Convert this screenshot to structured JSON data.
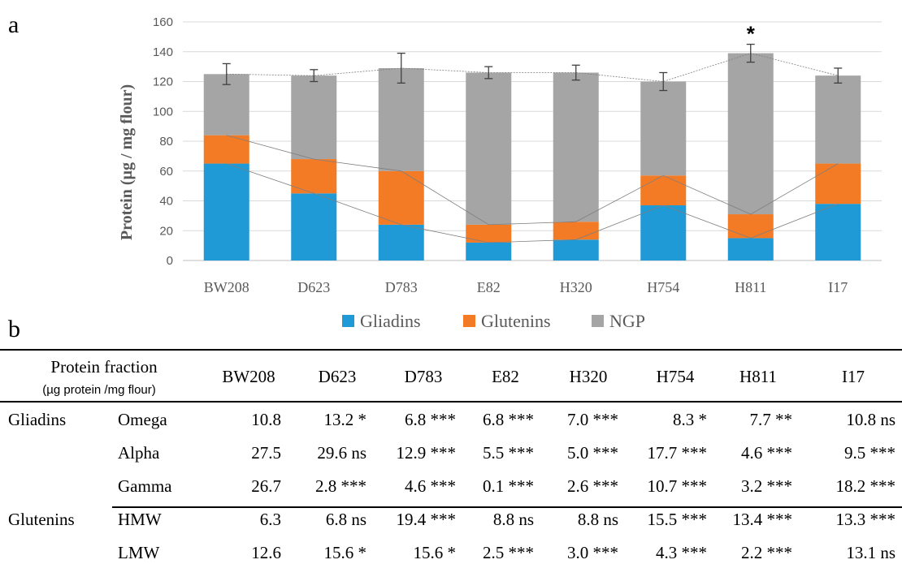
{
  "panel_a_label": "a",
  "panel_b_label": "b",
  "chart_data": {
    "type": "bar",
    "stacked": true,
    "categories": [
      "BW208",
      "D623",
      "D783",
      "E82",
      "H320",
      "H754",
      "H811",
      "I17"
    ],
    "series": [
      {
        "name": "Gliadins",
        "color": "#1f9ad6",
        "values": [
          65,
          45,
          24,
          12,
          14,
          37,
          15,
          38
        ]
      },
      {
        "name": "Glutenins",
        "color": "#f47b25",
        "values": [
          19,
          23,
          36,
          12,
          12,
          20,
          16,
          27
        ]
      },
      {
        "name": "NGP",
        "color": "#a5a5a5",
        "values": [
          41,
          56,
          69,
          102,
          100,
          63,
          108,
          59
        ]
      }
    ],
    "totals": [
      125,
      124,
      129,
      126,
      126,
      120,
      139,
      124
    ],
    "error_bars": [
      7,
      4,
      10,
      4,
      5,
      6,
      6,
      5
    ],
    "annotations": [
      {
        "category": "H811",
        "text": "*"
      }
    ],
    "ylabel": "Protein (µg / mg flour)",
    "xlabel": "",
    "ylim": [
      0,
      160
    ],
    "yticks": [
      0,
      20,
      40,
      60,
      80,
      100,
      120,
      140,
      160
    ],
    "grid": true,
    "legend_position": "bottom"
  },
  "table": {
    "header": {
      "title": "Protein fraction",
      "subtitle": "(µg protein /mg flour)",
      "columns": [
        "BW208",
        "D623",
        "D783",
        "E82",
        "H320",
        "H754",
        "H811",
        "I17"
      ]
    },
    "rows": [
      {
        "group": "Gliadins",
        "fraction": "Omega",
        "cells": [
          "10.8",
          "13.2 *",
          "6.8 ***",
          "6.8 ***",
          "7.0 ***",
          "8.3 *",
          "7.7 **",
          "10.8 ns"
        ]
      },
      {
        "group": "",
        "fraction": "Alpha",
        "cells": [
          "27.5",
          "29.6 ns",
          "12.9 ***",
          "5.5 ***",
          "5.0 ***",
          "17.7 ***",
          "4.6 ***",
          "9.5 ***"
        ]
      },
      {
        "group": "",
        "fraction": "Gamma",
        "cells": [
          "26.7",
          "2.8 ***",
          "4.6 ***",
          "0.1 ***",
          "2.6 ***",
          "10.7 ***",
          "3.2 ***",
          "18.2 ***"
        ]
      },
      {
        "group": "Glutenins",
        "fraction": "HMW",
        "cells": [
          "6.3",
          "6.8 ns",
          "19.4 ***",
          "8.8 ns",
          "8.8 ns",
          "15.5 ***",
          "13.4 ***",
          "13.3 ***"
        ]
      },
      {
        "group": "",
        "fraction": "LMW",
        "cells": [
          "12.6",
          "15.6 *",
          "15.6 *",
          "2.5 ***",
          "3.0 ***",
          "4.3 ***",
          "2.2 ***",
          "13.1 ns"
        ]
      }
    ]
  }
}
